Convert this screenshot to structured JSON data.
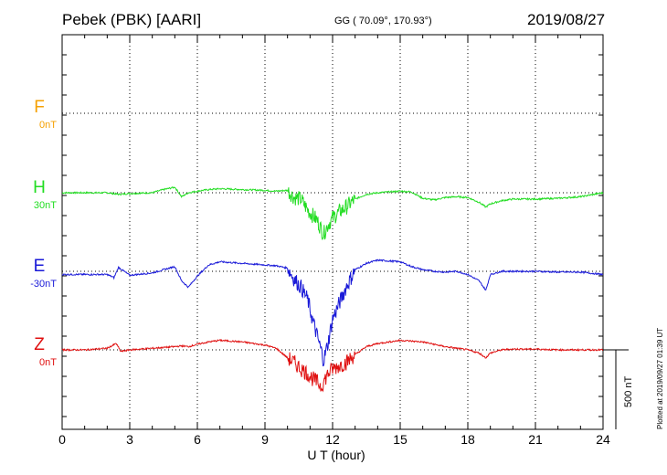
{
  "header": {
    "station": "Pebek (PBK)  [AARI]",
    "coords": "GG ( 70.09°, 170.93°)",
    "date": "2019/08/27"
  },
  "footer": {
    "plotted": "Plotted at 2019/09/27 01:39 UT",
    "scale": "500 nT"
  },
  "chart_data": {
    "type": "line",
    "xlabel": "U T (hour)",
    "xlim": [
      0,
      24
    ],
    "x_ticks": [
      "0",
      "3",
      "6",
      "9",
      "12",
      "15",
      "18",
      "21",
      "24"
    ],
    "grid": true,
    "scale_bar_nT": 500,
    "series": [
      {
        "name": "F",
        "offset": "0nT",
        "color": "#f5a000",
        "values": []
      },
      {
        "name": "H",
        "offset": "30nT",
        "color": "#22dd22",
        "x": [
          0,
          1,
          2,
          2.5,
          3,
          4,
          4.5,
          5,
          5.3,
          5.6,
          6,
          6.5,
          7,
          8,
          9,
          9.5,
          10,
          10.3,
          10.6,
          10.9,
          11.1,
          11.3,
          11.5,
          11.6,
          11.8,
          12,
          12.3,
          12.6,
          13,
          13.5,
          14,
          14.5,
          15,
          15.5,
          16,
          16.5,
          17,
          17.5,
          18,
          18.5,
          18.8,
          19,
          19.5,
          20,
          21,
          22,
          23,
          24
        ],
        "values": [
          0,
          0,
          0,
          -10,
          -5,
          0,
          20,
          35,
          -25,
          0,
          10,
          20,
          25,
          20,
          15,
          10,
          15,
          -30,
          -40,
          -110,
          -140,
          -170,
          -230,
          -260,
          -200,
          -160,
          -120,
          -90,
          -40,
          -10,
          0,
          5,
          10,
          5,
          -35,
          -45,
          -30,
          -25,
          -30,
          -60,
          -90,
          -70,
          -50,
          -40,
          -40,
          -35,
          -25,
          0
        ]
      },
      {
        "name": "E",
        "offset": "-30nT",
        "color": "#1a1ad8",
        "x": [
          0,
          1,
          2,
          2.3,
          2.5,
          3,
          4,
          4.5,
          5,
          5.3,
          5.6,
          6,
          6.5,
          7,
          8,
          9,
          9.5,
          10,
          10.3,
          10.6,
          10.9,
          11.1,
          11.3,
          11.5,
          11.6,
          11.8,
          12,
          12.3,
          12.6,
          13,
          13.5,
          14,
          14.5,
          15,
          15.5,
          16,
          16.5,
          17,
          17.5,
          18,
          18.5,
          18.8,
          19,
          19.5,
          20,
          21,
          22,
          23,
          24
        ],
        "values": [
          -20,
          -20,
          -20,
          -40,
          25,
          -25,
          -10,
          10,
          30,
          -60,
          -100,
          -30,
          40,
          60,
          50,
          40,
          35,
          20,
          -50,
          -100,
          -180,
          -300,
          -400,
          -500,
          -560,
          -450,
          -300,
          -200,
          -100,
          10,
          50,
          70,
          65,
          60,
          30,
          10,
          0,
          -5,
          0,
          -20,
          -60,
          -120,
          -20,
          0,
          0,
          0,
          -5,
          -5,
          -20
        ]
      },
      {
        "name": "Z",
        "offset": "0nT",
        "color": "#e01010",
        "x": [
          0,
          1,
          2,
          2.4,
          2.6,
          3,
          4,
          4.5,
          5,
          5.3,
          5.6,
          6,
          6.5,
          7,
          8,
          9,
          9.5,
          10,
          10.3,
          10.6,
          10.9,
          11.1,
          11.3,
          11.5,
          11.6,
          11.8,
          12,
          12.3,
          12.6,
          13,
          13.5,
          14,
          14.5,
          15,
          15.5,
          16,
          16.5,
          17,
          17.5,
          18,
          18.5,
          18.8,
          19,
          19.5,
          20,
          21,
          22,
          23,
          24
        ],
        "values": [
          0,
          0,
          10,
          40,
          -10,
          0,
          10,
          15,
          20,
          25,
          20,
          35,
          50,
          60,
          50,
          30,
          10,
          -50,
          -80,
          -120,
          -150,
          -180,
          -200,
          -230,
          -200,
          -150,
          -120,
          -100,
          -80,
          -30,
          20,
          40,
          50,
          60,
          55,
          50,
          35,
          20,
          10,
          0,
          -20,
          -50,
          -20,
          0,
          5,
          5,
          0,
          0,
          0
        ]
      }
    ]
  }
}
